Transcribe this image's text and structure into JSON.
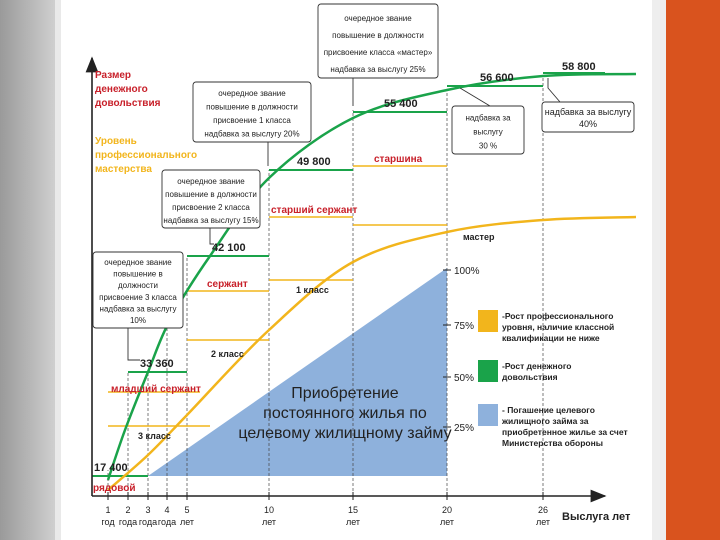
{
  "colors": {
    "green": "#1aa34a",
    "yellow": "#f2b51c",
    "blue": "#8eb1dc",
    "red": "#c8202a",
    "text": "#222222",
    "axis": "#222222",
    "frame_orange": "#d9531e"
  },
  "axes": {
    "y_label_money": [
      "Размер",
      "денежного",
      "довольствия"
    ],
    "y_label_skill": [
      "Уровень",
      "профессионального",
      "мастерства"
    ],
    "x_label": "Выслуга лет"
  },
  "x_ticks": [
    {
      "x": 1,
      "top": "1",
      "bottom": "год"
    },
    {
      "x": 2,
      "top": "2",
      "bottom": "года"
    },
    {
      "x": 3,
      "top": "3",
      "bottom": "года"
    },
    {
      "x": 4,
      "top": "4",
      "bottom": "года"
    },
    {
      "x": 5,
      "top": "5",
      "bottom": "лет"
    },
    {
      "x": 10,
      "top": "10",
      "bottom": "лет"
    },
    {
      "x": 15,
      "top": "15",
      "bottom": "лет"
    },
    {
      "x": 20,
      "top": "20",
      "bottom": "лет"
    },
    {
      "x": 26,
      "top": "26",
      "bottom": "лет"
    }
  ],
  "chart_data": {
    "type": "line",
    "xlabel": "Выслуга лет",
    "ylabel": "Размер денежного довольствия",
    "series": [
      {
        "name": "-Рост денежного довольствия",
        "kind": "money",
        "x": [
          1,
          2,
          3,
          4,
          5,
          10,
          15,
          20,
          26
        ],
        "values": [
          17400,
          33360,
          33360,
          42100,
          42100,
          49800,
          55400,
          56600,
          58800
        ]
      },
      {
        "name": "-Рост профессионального уровня, наличие классной квалификации не ниже",
        "kind": "skill",
        "x": [
          1,
          2,
          3,
          5,
          10,
          15,
          20,
          26
        ],
        "values": [
          17400,
          26000,
          31000,
          37000,
          44500,
          48500,
          50000,
          50500
        ]
      },
      {
        "name": "- Погашение целевого жилищного займа за приобретенное жилье за счет Министерства обороны",
        "kind": "housing",
        "x": [
          1,
          20
        ],
        "values": [
          0,
          100
        ]
      }
    ],
    "money_levels": [
      {
        "value": "17 400",
        "rank": "рядовой"
      },
      {
        "value": "33 360",
        "rank": "младший сержант"
      },
      {
        "value": "42 100",
        "rank": "сержант"
      },
      {
        "value": "49 800",
        "rank": "старший сержант"
      },
      {
        "value": "55 400",
        "rank": "старшина"
      },
      {
        "value": "56 600",
        "rank": ""
      },
      {
        "value": "58 800",
        "rank": ""
      }
    ],
    "skill_levels": [
      "3 класс",
      "2 класс",
      "1 класс",
      "мастер"
    ],
    "housing_ticks": [
      "25%",
      "50%",
      "75%",
      "100%"
    ],
    "housing_label": [
      "Приобретение",
      "постоянного жилья по",
      "целевому жилищному займу"
    ]
  },
  "callouts": {
    "c1": [
      "очередное звание",
      "повышение в",
      "должности",
      "присвоение 3 класса",
      "надбавка за выслугу",
      "10%"
    ],
    "c2": [
      "очередное звание",
      "повышение в должности",
      "присвоение 2 класса",
      "надбавка за выслугу 15%"
    ],
    "c3": [
      "очередное звание",
      "повышение в должности",
      "присвоение 1 класса",
      "надбавка за выслугу 20%"
    ],
    "c4": [
      "очередное звание",
      "повышение в должности",
      "присвоение класса «мастер»",
      "надбавка за выслугу 25%"
    ],
    "c5": [
      "надбавка за",
      "выслугу",
      "30 %"
    ],
    "c6": [
      "надбавка за выслугу",
      "40%"
    ]
  },
  "legend": [
    {
      "color": "yellow",
      "lines": [
        "-Рост профессионального",
        "уровня, наличие классной",
        "квалификации не ниже"
      ]
    },
    {
      "color": "green",
      "lines": [
        "-Рост денежного",
        "довольствия"
      ]
    },
    {
      "color": "blue",
      "lines": [
        "- Погашение целевого",
        "жилищного займа за",
        "приобретенное жилье за счет",
        "Министерства обороны"
      ]
    }
  ]
}
